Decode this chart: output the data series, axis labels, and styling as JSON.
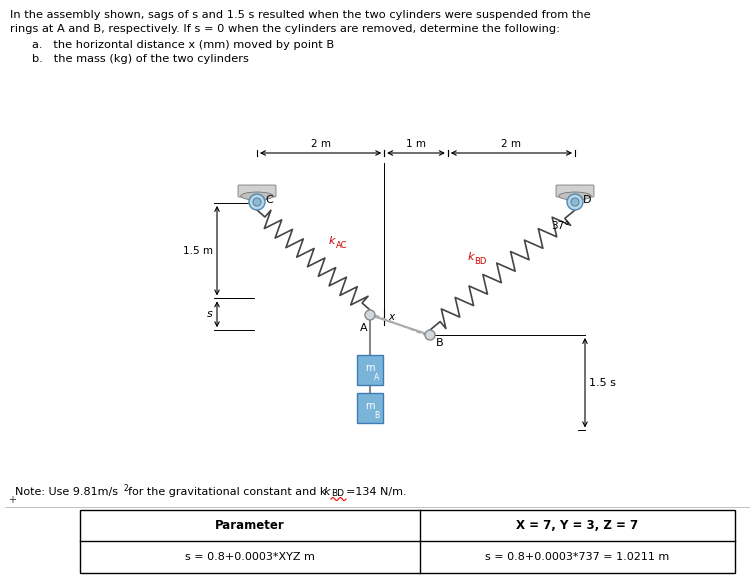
{
  "title_line1": "In the assembly shown, sags of s and 1.5 s resulted when the two cylinders were suspended from the",
  "title_line2": "rings at A and B, respectively. If s = 0 when the cylinders are removed, determine the following:",
  "bullet_a": "a.   the horizontal distance x (mm) moved by point B",
  "bullet_b": "b.   the mass (kg) of the two cylinders",
  "note_line": "Note: Use 9.81m/s",
  "note_sup": "2",
  "note_line2": "for the gravitational constant and k",
  "note_kbd": "BD",
  "note_end": "=134 N/m.",
  "table_header_left": "Parameter",
  "table_header_right": "X = 7, Y = 3, Z = 7",
  "table_row1_left": "s = 0.8+0.0003*XYZ m",
  "table_row1_right": "s = 0.8+0.0003*737 = 1.0211 m",
  "bg_color": "#ffffff",
  "text_color": "#000000",
  "dim_2m_left": "2 m",
  "dim_1m": "1 m",
  "dim_2m_right": "2 m",
  "dim_15m": "1.5 m",
  "label_C": "C",
  "label_D": "D",
  "label_A": "A",
  "label_B": "B",
  "label_kac": "k",
  "label_kac_sub": "AC",
  "label_kbd": "k",
  "label_kbd_sub": "BD",
  "label_s": "s",
  "label_15s": "1.5 s",
  "label_x": "x",
  "label_37": "37",
  "label_mA": "m",
  "label_mA_sub": "A",
  "label_mB": "m",
  "label_mB_sub": "B",
  "spring_color": "#444444",
  "cylinder_color": "#7ab4d8",
  "cylinder_edge": "#3a7db8",
  "support_top_color": "#cccccc",
  "support_ring_color": "#8ab0d0",
  "rope_color": "#888888",
  "red_label_color": "#cc0000",
  "dim_line_color": "#000000"
}
